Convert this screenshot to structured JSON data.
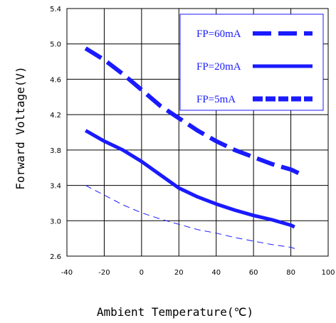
{
  "chart_data": {
    "type": "line",
    "xlabel": "Ambient Temperature(℃)",
    "ylabel": "Forward Voltage(V)",
    "xlim": [
      -40,
      100
    ],
    "ylim": [
      2.6,
      5.4
    ],
    "xticks": [
      "-40",
      "-20",
      "0",
      "20",
      "40",
      "60",
      "80",
      "100"
    ],
    "yticks": [
      "2.6",
      "3.0",
      "3.4",
      "3.8",
      "4.2",
      "4.6",
      "5.0",
      "5.4"
    ],
    "grid": true,
    "legend_position": "top-right",
    "series": [
      {
        "name": "FP=60mA",
        "style": "long-dash",
        "color": "#1a1aff",
        "x": [
          -30,
          -20,
          -10,
          0,
          10,
          20,
          30,
          40,
          50,
          60,
          70,
          80,
          85
        ],
        "y": [
          4.95,
          4.82,
          4.66,
          4.48,
          4.3,
          4.16,
          4.02,
          3.9,
          3.8,
          3.72,
          3.64,
          3.58,
          3.53
        ]
      },
      {
        "name": "FP=20mA",
        "style": "solid",
        "color": "#1a1aff",
        "x": [
          -30,
          -20,
          -10,
          0,
          10,
          20,
          30,
          40,
          50,
          60,
          70,
          80,
          82
        ],
        "y": [
          4.02,
          3.9,
          3.8,
          3.67,
          3.52,
          3.37,
          3.27,
          3.19,
          3.12,
          3.06,
          3.01,
          2.95,
          2.93
        ]
      },
      {
        "name": "FP=5mA",
        "style": "short-dash",
        "color": "#1a1aff",
        "x": [
          -30,
          -20,
          -10,
          0,
          10,
          20,
          30,
          40,
          50,
          60,
          70,
          80,
          83
        ],
        "y": [
          3.4,
          3.29,
          3.18,
          3.09,
          3.02,
          2.96,
          2.9,
          2.86,
          2.81,
          2.77,
          2.73,
          2.7,
          2.68
        ]
      }
    ]
  }
}
